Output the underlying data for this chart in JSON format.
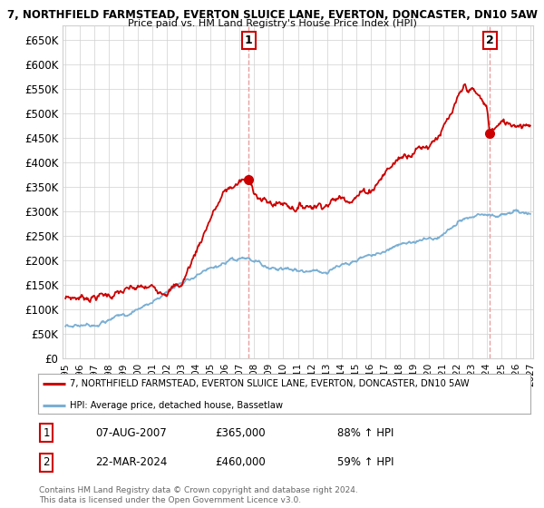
{
  "title1": "7, NORTHFIELD FARMSTEAD, EVERTON SLUICE LANE, EVERTON, DONCASTER, DN10 5AW",
  "title2": "Price paid vs. HM Land Registry's House Price Index (HPI)",
  "ylabel_ticks": [
    "£0",
    "£50K",
    "£100K",
    "£150K",
    "£200K",
    "£250K",
    "£300K",
    "£350K",
    "£400K",
    "£450K",
    "£500K",
    "£550K",
    "£600K",
    "£650K"
  ],
  "ytick_vals": [
    0,
    50000,
    100000,
    150000,
    200000,
    250000,
    300000,
    350000,
    400000,
    450000,
    500000,
    550000,
    600000,
    650000
  ],
  "ylim": [
    0,
    680000
  ],
  "xlim_start": 1994.8,
  "xlim_end": 2027.2,
  "transaction1_date": 2007.6,
  "transaction1_price": 365000,
  "transaction1_label": "1",
  "transaction2_date": 2024.22,
  "transaction2_price": 460000,
  "transaction2_label": "2",
  "line_color_price": "#cc0000",
  "line_color_hpi": "#7aafd4",
  "vline_color": "#e8a0a0",
  "grid_color": "#d0d0d0",
  "background_color": "#ffffff",
  "legend_address": "7, NORTHFIELD FARMSTEAD, EVERTON SLUICE LANE, EVERTON, DONCASTER, DN10 5AW",
  "legend_hpi": "HPI: Average price, detached house, Bassetlaw",
  "table_row1": [
    "1",
    "07-AUG-2007",
    "£365,000",
    "88% ↑ HPI"
  ],
  "table_row2": [
    "2",
    "22-MAR-2024",
    "£460,000",
    "59% ↑ HPI"
  ],
  "footnote": "Contains HM Land Registry data © Crown copyright and database right 2024.\nThis data is licensed under the Open Government Licence v3.0.",
  "marker_color": "#cc0000",
  "marker_size": 7,
  "hpi_key_x": [
    1995.0,
    1996.0,
    1997.0,
    1998.0,
    1999.0,
    2000.0,
    2001.0,
    2002.0,
    2003.0,
    2004.0,
    2005.0,
    2006.0,
    2007.0,
    2007.5,
    2008.0,
    2009.0,
    2010.0,
    2011.0,
    2012.0,
    2013.0,
    2014.0,
    2015.0,
    2016.0,
    2017.0,
    2018.0,
    2019.0,
    2020.0,
    2021.0,
    2022.0,
    2023.0,
    2024.0,
    2025.0,
    2026.0,
    2027.0
  ],
  "hpi_key_y": [
    65000,
    68000,
    72000,
    78000,
    88000,
    100000,
    115000,
    135000,
    155000,
    170000,
    180000,
    190000,
    198000,
    200000,
    195000,
    185000,
    185000,
    182000,
    178000,
    180000,
    188000,
    198000,
    208000,
    220000,
    232000,
    240000,
    242000,
    255000,
    275000,
    285000,
    290000,
    292000,
    295000,
    298000
  ],
  "red_key_x": [
    1995.0,
    1996.0,
    1997.0,
    1998.0,
    1999.0,
    2000.0,
    2001.0,
    2002.0,
    2003.0,
    2004.0,
    2005.0,
    2006.0,
    2007.0,
    2007.6,
    2008.0,
    2008.5,
    2009.0,
    2010.0,
    2011.0,
    2012.0,
    2013.0,
    2014.0,
    2015.0,
    2016.0,
    2017.0,
    2018.0,
    2019.0,
    2020.0,
    2020.5,
    2021.0,
    2021.5,
    2022.0,
    2022.5,
    2023.0,
    2023.5,
    2024.0,
    2024.22,
    2024.5,
    2025.0,
    2026.0,
    2027.0
  ],
  "red_key_y": [
    122000,
    125000,
    128000,
    130000,
    135000,
    140000,
    142000,
    145000,
    150000,
    220000,
    290000,
    340000,
    360000,
    365000,
    345000,
    325000,
    315000,
    318000,
    310000,
    315000,
    320000,
    328000,
    335000,
    345000,
    380000,
    410000,
    430000,
    438000,
    455000,
    470000,
    490000,
    520000,
    550000,
    545000,
    530000,
    510000,
    460000,
    470000,
    478000,
    482000,
    485000
  ]
}
